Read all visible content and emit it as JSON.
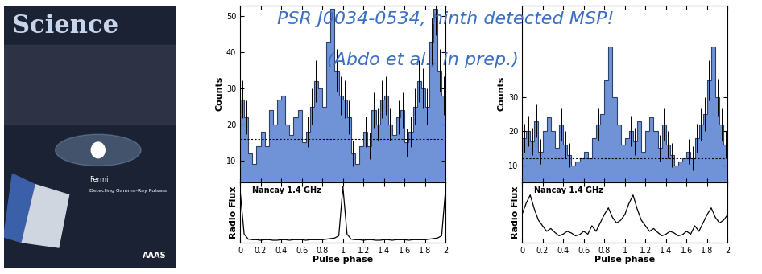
{
  "title": "PSR J0034-0534, ninth detected MSP!",
  "subtitle": "(Abdo et al., in prep.)",
  "cover": {
    "masthead": "Science",
    "caption": "Fermi",
    "caption2": "Detecting Gamma-Ray Pulsars",
    "publisher": "AAAS"
  },
  "chart_data": [
    {
      "type": "histogram",
      "ylabel": "Counts",
      "color": "#6f93d6",
      "tick_labels": "y",
      "bins": [
        0,
        0.04,
        0.08,
        0.12,
        0.16,
        0.2,
        0.24,
        0.28,
        0.32,
        0.36,
        0.4,
        0.44,
        0.48,
        0.52,
        0.56,
        0.6,
        0.64,
        0.68,
        0.72,
        0.76,
        0.8,
        0.84,
        0.88,
        0.92,
        0.96,
        1.0,
        1.04,
        1.08,
        1.12,
        1.16,
        1.2,
        1.24,
        1.28,
        1.32,
        1.36,
        1.4,
        1.44,
        1.48,
        1.52,
        1.56,
        1.6,
        1.64,
        1.68,
        1.72,
        1.76,
        1.8,
        1.84,
        1.88,
        1.92,
        1.96,
        2.0
      ],
      "counts": [
        27,
        22,
        12,
        9,
        14,
        18,
        14,
        24,
        20,
        27,
        28,
        20,
        17,
        22,
        24,
        15,
        18,
        25,
        32,
        30,
        25,
        43,
        52,
        35,
        28,
        27,
        22,
        12,
        9,
        14,
        18,
        14,
        24,
        20,
        27,
        28,
        20,
        17,
        22,
        24,
        15,
        18,
        25,
        32,
        30,
        25,
        43,
        52,
        35,
        28
      ],
      "errors": [
        5.2,
        4.7,
        3.5,
        3,
        3.7,
        4.2,
        3.7,
        4.9,
        4.5,
        5.2,
        5.3,
        4.5,
        4.1,
        4.7,
        4.9,
        3.9,
        4.2,
        5,
        5.7,
        5.5,
        5,
        6.6,
        7.2,
        5.9,
        5.3,
        5.2,
        4.7,
        3.5,
        3,
        3.7,
        4.2,
        3.7,
        4.9,
        4.5,
        5.2,
        5.3,
        4.5,
        4.1,
        4.7,
        4.9,
        3.9,
        4.2,
        5,
        5.7,
        5.5,
        5,
        6.6,
        7.2,
        5.9,
        5.3
      ],
      "background": 16,
      "xlim": [
        0,
        2
      ],
      "xticks": [
        0,
        0.2,
        0.4,
        0.6,
        0.8,
        1,
        1.2,
        1.4,
        1.6,
        1.8,
        2
      ],
      "ylim": [
        4,
        53
      ],
      "yticks": [
        10,
        20,
        30,
        40,
        50
      ]
    },
    {
      "type": "line",
      "xlabel": "Pulse phase",
      "ylabel": "Radio Flux",
      "annotation": "Nancay 1.4 GHz",
      "color": "#000000",
      "tick_labels": "x",
      "x": [
        0,
        0.04,
        0.08,
        0.12,
        0.16,
        0.2,
        0.24,
        0.28,
        0.32,
        0.36,
        0.4,
        0.44,
        0.48,
        0.52,
        0.56,
        0.6,
        0.64,
        0.68,
        0.72,
        0.76,
        0.8,
        0.84,
        0.88,
        0.92,
        0.96,
        1.0,
        1.04,
        1.08,
        1.12,
        1.16,
        1.2,
        1.24,
        1.28,
        1.32,
        1.36,
        1.4,
        1.44,
        1.48,
        1.52,
        1.56,
        1.6,
        1.64,
        1.68,
        1.72,
        1.76,
        1.8,
        1.84,
        1.88,
        1.92,
        1.96,
        2.0
      ],
      "values": [
        0.95,
        0.15,
        0.06,
        0.05,
        0.05,
        0.04,
        0.05,
        0.05,
        0.04,
        0.04,
        0.05,
        0.05,
        0.04,
        0.05,
        0.05,
        0.05,
        0.04,
        0.05,
        0.05,
        0.05,
        0.05,
        0.06,
        0.07,
        0.08,
        0.12,
        1.0,
        0.15,
        0.06,
        0.05,
        0.05,
        0.04,
        0.05,
        0.05,
        0.04,
        0.04,
        0.05,
        0.05,
        0.04,
        0.05,
        0.05,
        0.05,
        0.04,
        0.05,
        0.05,
        0.05,
        0.05,
        0.06,
        0.07,
        0.08,
        0.12,
        1.0
      ],
      "xlim": [
        0,
        2
      ],
      "xticks": [
        0,
        0.2,
        0.4,
        0.6,
        0.8,
        1,
        1.2,
        1.4,
        1.6,
        1.8,
        2
      ],
      "ylim": [
        0,
        1.08
      ],
      "yticks": []
    },
    {
      "type": "histogram",
      "ylabel": "Counts",
      "color": "#6f93d6",
      "tick_labels": "y",
      "bins": [
        0,
        0.04,
        0.08,
        0.12,
        0.16,
        0.2,
        0.24,
        0.28,
        0.32,
        0.36,
        0.4,
        0.44,
        0.48,
        0.52,
        0.56,
        0.6,
        0.64,
        0.68,
        0.72,
        0.76,
        0.8,
        0.84,
        0.88,
        0.92,
        0.96,
        1.0,
        1.04,
        1.08,
        1.12,
        1.16,
        1.2,
        1.24,
        1.28,
        1.32,
        1.36,
        1.4,
        1.44,
        1.48,
        1.52,
        1.56,
        1.6,
        1.64,
        1.68,
        1.72,
        1.76,
        1.8,
        1.84,
        1.88,
        1.92,
        1.96,
        2.0
      ],
      "counts": [
        18,
        20,
        17,
        23,
        14,
        20,
        24,
        20,
        15,
        22,
        16,
        13,
        10,
        11,
        12,
        14,
        12,
        18,
        22,
        25,
        35,
        45,
        30,
        22,
        16,
        18,
        20,
        17,
        23,
        14,
        20,
        24,
        20,
        15,
        22,
        16,
        13,
        10,
        11,
        12,
        14,
        12,
        18,
        22,
        25,
        35,
        45,
        30,
        22,
        16
      ],
      "errors": [
        4.2,
        4.5,
        4.1,
        4.8,
        3.7,
        4.5,
        4.9,
        4.5,
        3.9,
        4.7,
        4,
        3.6,
        3.2,
        3.3,
        3.5,
        3.7,
        3.5,
        4.2,
        4.7,
        5,
        5.9,
        6.7,
        5.5,
        4.7,
        4,
        4.2,
        4.5,
        4.1,
        4.8,
        3.7,
        4.5,
        4.9,
        4.5,
        3.9,
        4.7,
        4,
        3.6,
        3.2,
        3.3,
        3.5,
        3.7,
        3.5,
        4.2,
        4.7,
        5,
        5.9,
        6.7,
        5.5,
        4.7,
        4
      ],
      "background": 12,
      "xlim": [
        0,
        2
      ],
      "xticks": [
        0,
        0.2,
        0.4,
        0.6,
        0.8,
        1,
        1.2,
        1.4,
        1.6,
        1.8,
        2
      ],
      "ylim": [
        5,
        57
      ],
      "yticks": [
        10,
        20,
        30
      ]
    },
    {
      "type": "line",
      "xlabel": "Pulse phase",
      "ylabel": "Radio Flux",
      "annotation": "Nancay 1.4 GHz",
      "color": "#000000",
      "tick_labels": "x",
      "x": [
        0,
        0.04,
        0.08,
        0.12,
        0.16,
        0.2,
        0.24,
        0.28,
        0.32,
        0.36,
        0.4,
        0.44,
        0.48,
        0.52,
        0.56,
        0.6,
        0.64,
        0.68,
        0.72,
        0.76,
        0.8,
        0.84,
        0.88,
        0.92,
        0.96,
        1.0,
        1.04,
        1.08,
        1.12,
        1.16,
        1.2,
        1.24,
        1.28,
        1.32,
        1.36,
        1.4,
        1.44,
        1.48,
        1.52,
        1.56,
        1.6,
        1.64,
        1.68,
        1.72,
        1.76,
        1.8,
        1.84,
        1.88,
        1.92,
        1.96,
        2.0
      ],
      "values": [
        0.5,
        0.7,
        0.85,
        0.6,
        0.4,
        0.3,
        0.2,
        0.25,
        0.18,
        0.12,
        0.15,
        0.2,
        0.17,
        0.12,
        0.14,
        0.2,
        0.15,
        0.3,
        0.2,
        0.35,
        0.5,
        0.62,
        0.45,
        0.35,
        0.4,
        0.5,
        0.7,
        0.85,
        0.6,
        0.4,
        0.3,
        0.2,
        0.25,
        0.18,
        0.12,
        0.15,
        0.2,
        0.17,
        0.12,
        0.14,
        0.2,
        0.15,
        0.3,
        0.2,
        0.35,
        0.5,
        0.62,
        0.45,
        0.35,
        0.4,
        0.5
      ],
      "xlim": [
        0,
        2
      ],
      "xticks": [
        0,
        0.2,
        0.4,
        0.6,
        0.8,
        1,
        1.2,
        1.4,
        1.6,
        1.8,
        2
      ],
      "ylim": [
        0,
        1.08
      ],
      "yticks": []
    }
  ]
}
